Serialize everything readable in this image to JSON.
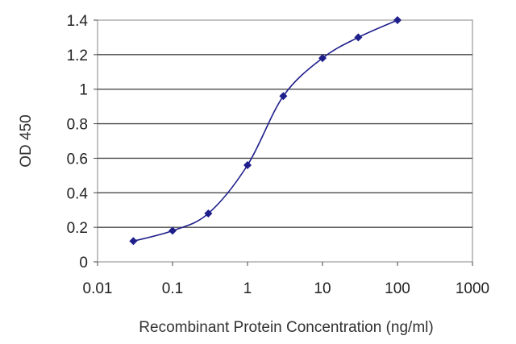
{
  "chart_data": {
    "type": "line",
    "title": "",
    "xlabel": "Recombinant Protein Concentration (ng/ml)",
    "ylabel": "OD 450",
    "x_scale": "log",
    "xlim": [
      0.01,
      1000
    ],
    "ylim": [
      0,
      1.4
    ],
    "x_ticks": [
      "0.01",
      "0.1",
      "1",
      "10",
      "100",
      "1000"
    ],
    "y_ticks": [
      "0",
      "0.2",
      "0.4",
      "0.6",
      "0.8",
      "1",
      "1.2",
      "1.4"
    ],
    "grid": "horizontal",
    "legend": "none",
    "series": [
      {
        "x": [
          0.03,
          0.1,
          0.3,
          1,
          3,
          10,
          30,
          100
        ],
        "y": [
          0.12,
          0.18,
          0.28,
          0.56,
          0.96,
          1.18,
          1.3,
          1.4
        ],
        "color": "#1f1f8c",
        "marker": "diamond"
      }
    ]
  }
}
